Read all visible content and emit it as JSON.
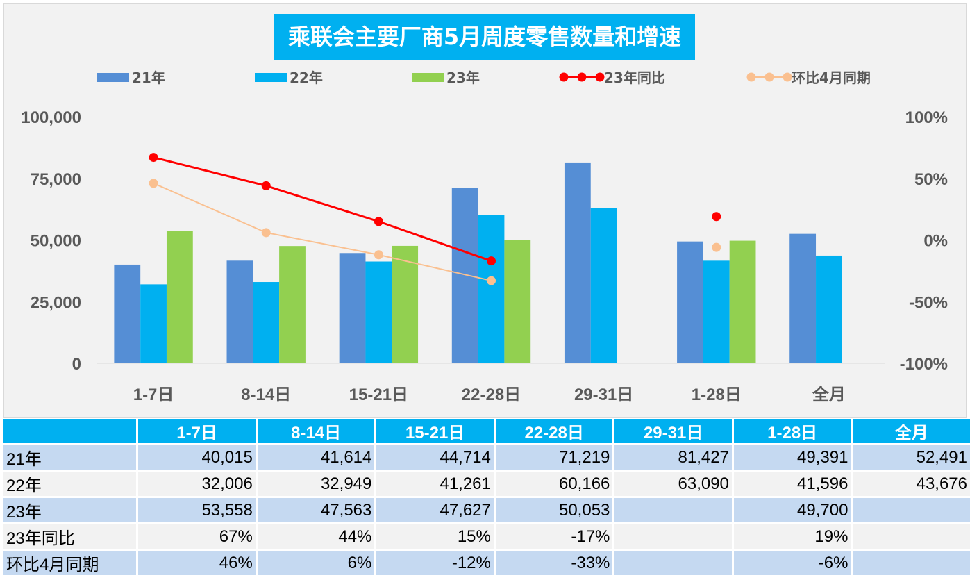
{
  "title": "乘联会主要厂商5月周度零售数量和增速",
  "chart_data": {
    "type": "bar+line",
    "title": "乘联会主要厂商5月周度零售数量和增速",
    "categories": [
      "1-7日",
      "8-14日",
      "15-21日",
      "22-28日",
      "29-31日",
      "1-28日",
      "全月"
    ],
    "bar_series": [
      {
        "name": "21年",
        "color": "#558ed5",
        "values": [
          40015,
          41614,
          44714,
          71219,
          81427,
          49391,
          52491
        ]
      },
      {
        "name": "22年",
        "color": "#00b0f0",
        "values": [
          32006,
          32949,
          41261,
          60166,
          63090,
          41596,
          43676
        ]
      },
      {
        "name": "23年",
        "color": "#92d050",
        "values": [
          53558,
          47563,
          47627,
          50053,
          null,
          49700,
          null
        ]
      }
    ],
    "line_series": [
      {
        "name": "23年同比",
        "color": "#ff0000",
        "values": [
          67,
          44,
          15,
          -17,
          null,
          19,
          null
        ]
      },
      {
        "name": "环比4月同期",
        "color": "#fac090",
        "values": [
          46,
          6,
          -12,
          -33,
          null,
          -6,
          null
        ]
      }
    ],
    "y_left": {
      "range": [
        0,
        100000
      ],
      "ticks": [
        "0",
        "25,000",
        "50,000",
        "75,000",
        "100,000"
      ]
    },
    "y_right": {
      "range": [
        -100,
        100
      ],
      "ticks": [
        "-100%",
        "-50%",
        "0%",
        "50%",
        "100%"
      ]
    },
    "legend": "top",
    "grid": false
  },
  "table": {
    "header": [
      "",
      "1-7日",
      "8-14日",
      "15-21日",
      "22-28日",
      "29-31日",
      "1-28日",
      "全月"
    ],
    "rows": [
      [
        "21年",
        "40,015",
        "41,614",
        "44,714",
        "71,219",
        "81,427",
        "49,391",
        "52,491"
      ],
      [
        "22年",
        "32,006",
        "32,949",
        "41,261",
        "60,166",
        "63,090",
        "41,596",
        "43,676"
      ],
      [
        "23年",
        "53,558",
        "47,563",
        "47,627",
        "50,053",
        "",
        "49,700",
        ""
      ],
      [
        "23年同比",
        "67%",
        "44%",
        "15%",
        "-17%",
        "",
        "19%",
        ""
      ],
      [
        "环比4月同期",
        "46%",
        "6%",
        "-12%",
        "-33%",
        "",
        "-6%",
        ""
      ]
    ]
  }
}
